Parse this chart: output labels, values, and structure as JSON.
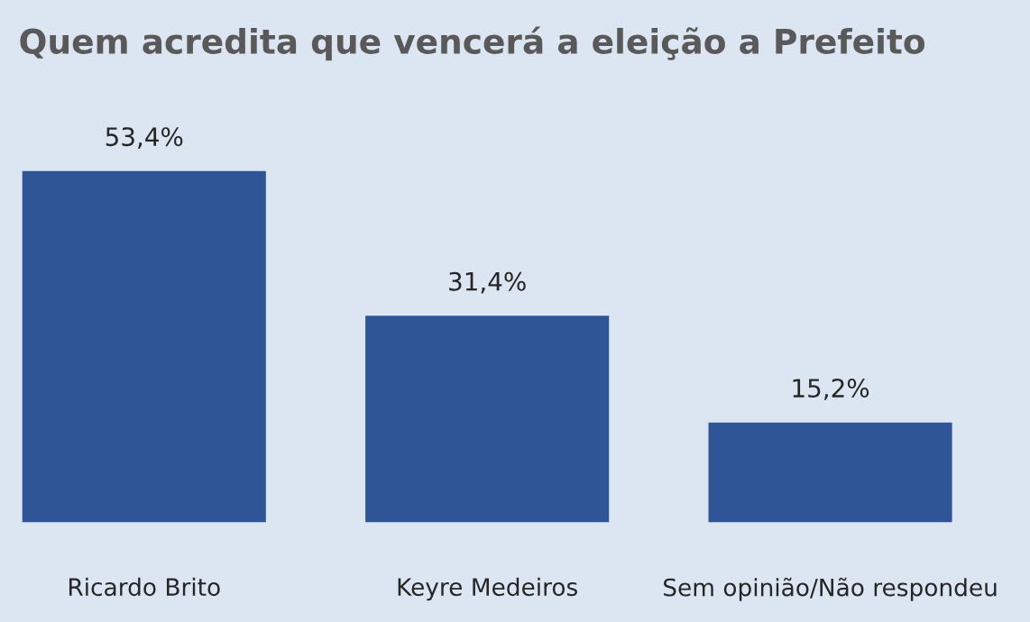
{
  "chart_data": {
    "type": "bar",
    "title": "Quem acredita que vencerá a eleição a Prefeito",
    "categories": [
      "Ricardo Brito",
      "Keyre Medeiros",
      "Sem opinião/Não respondeu"
    ],
    "values": [
      53.4,
      31.4,
      15.2
    ],
    "color": "#2f5597",
    "value_labels": [
      "53,4%",
      "31,4%",
      "15,2%"
    ],
    "grid": false,
    "legend": false
  }
}
